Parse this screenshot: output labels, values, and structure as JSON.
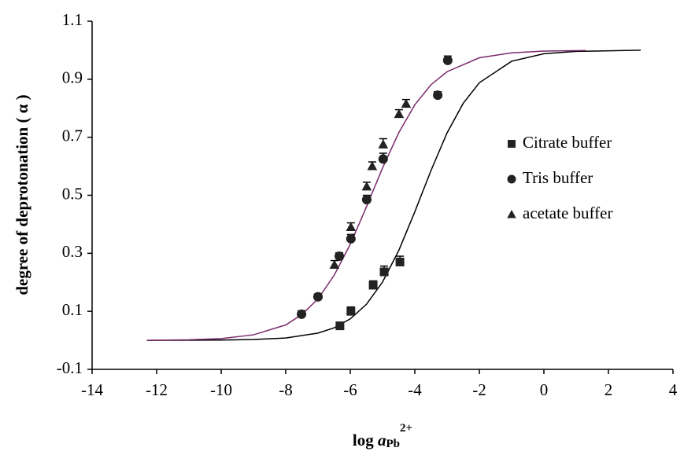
{
  "chart_data": {
    "type": "scatter",
    "y_label": "degree of deprotonation ( α )",
    "x_label": {
      "text": "log ",
      "italic": "a",
      "subscript": "Pb",
      "superscript": "2+"
    },
    "xlim": [
      -14,
      4
    ],
    "xticks": [
      -14,
      -12,
      -10,
      -8,
      -6,
      -4,
      -2,
      0,
      2,
      4
    ],
    "ylim": [
      -0.1,
      1.1
    ],
    "yticks": [
      -0.1,
      0.1,
      0.3,
      0.5,
      0.7,
      0.9,
      1.1
    ],
    "legend": "right",
    "series": [
      {
        "name": "Citrate buffer",
        "marker": "square",
        "color": "#222222",
        "x": [
          -6.32,
          -5.98,
          -5.29,
          -4.95,
          -4.46
        ],
        "values": [
          0.05,
          0.1,
          0.19,
          0.236,
          0.27
        ],
        "errors": [
          0.012,
          0.015,
          0.015,
          0.02,
          0.02
        ]
      },
      {
        "name": "Tris buffer",
        "marker": "circle",
        "color": "#222222",
        "x": [
          -7.51,
          -7.0,
          -6.34,
          -5.98,
          -5.49,
          -4.98,
          -3.29,
          -2.98
        ],
        "values": [
          0.09,
          0.15,
          0.29,
          0.35,
          0.485,
          0.625,
          0.845,
          0.965
        ],
        "errors": [
          0.012,
          0.01,
          0.012,
          0.015,
          0.015,
          0.02,
          0.012,
          0.015
        ]
      },
      {
        "name": "acetate buffer",
        "marker": "triangle",
        "color": "#222222",
        "x": [
          -6.49,
          -5.98,
          -5.49,
          -5.32,
          -4.98,
          -4.49,
          -4.27
        ],
        "values": [
          0.26,
          0.39,
          0.53,
          0.6,
          0.675,
          0.78,
          0.815
        ],
        "errors": [
          0.015,
          0.015,
          0.015,
          0.015,
          0.02,
          0.015,
          0.015
        ]
      }
    ],
    "curves": [
      {
        "color": "#000000",
        "x": [
          -12.3,
          -10,
          -9,
          -8,
          -7,
          -6.5,
          -6,
          -5.5,
          -5,
          -4.5,
          -4,
          -3.5,
          -3,
          -2.5,
          -2,
          -1,
          0,
          1,
          3
        ],
        "values": [
          0.0,
          0.001,
          0.003,
          0.008,
          0.025,
          0.043,
          0.074,
          0.124,
          0.201,
          0.309,
          0.443,
          0.585,
          0.715,
          0.817,
          0.888,
          0.962,
          0.988,
          0.996,
          1.0
        ]
      },
      {
        "color": "#7b2a6b",
        "x": [
          -12.3,
          -11,
          -10,
          -9,
          -8,
          -7.5,
          -7,
          -6.5,
          -6,
          -5.5,
          -5,
          -4.5,
          -4,
          -3.5,
          -3,
          -2,
          -1,
          0,
          1.3
        ],
        "values": [
          0.0,
          0.002,
          0.006,
          0.019,
          0.053,
          0.089,
          0.143,
          0.224,
          0.331,
          0.46,
          0.594,
          0.715,
          0.812,
          0.881,
          0.926,
          0.974,
          0.991,
          0.997,
          0.999
        ]
      }
    ]
  }
}
